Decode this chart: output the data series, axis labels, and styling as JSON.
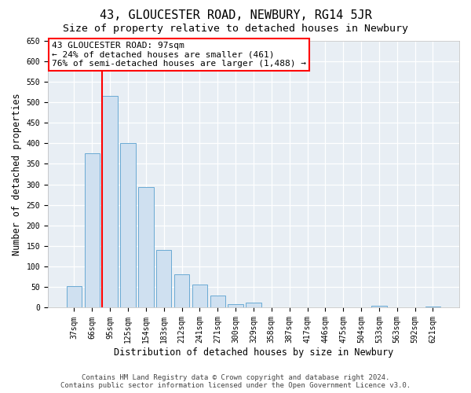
{
  "title": "43, GLOUCESTER ROAD, NEWBURY, RG14 5JR",
  "subtitle": "Size of property relative to detached houses in Newbury",
  "xlabel": "Distribution of detached houses by size in Newbury",
  "ylabel": "Number of detached properties",
  "footer_line1": "Contains HM Land Registry data © Crown copyright and database right 2024.",
  "footer_line2": "Contains public sector information licensed under the Open Government Licence v3.0.",
  "categories": [
    "37sqm",
    "66sqm",
    "95sqm",
    "125sqm",
    "154sqm",
    "183sqm",
    "212sqm",
    "241sqm",
    "271sqm",
    "300sqm",
    "329sqm",
    "358sqm",
    "387sqm",
    "417sqm",
    "446sqm",
    "475sqm",
    "504sqm",
    "533sqm",
    "563sqm",
    "592sqm",
    "621sqm"
  ],
  "values": [
    52,
    375,
    515,
    400,
    293,
    140,
    82,
    57,
    30,
    8,
    12,
    0,
    0,
    0,
    0,
    0,
    0,
    5,
    0,
    0,
    3
  ],
  "bar_color": "#cfe0f0",
  "bar_edge_color": "#6aaad4",
  "vertical_line_color": "red",
  "annotation_text": "43 GLOUCESTER ROAD: 97sqm\n← 24% of detached houses are smaller (461)\n76% of semi-detached houses are larger (1,488) →",
  "annotation_box_facecolor": "white",
  "annotation_box_edgecolor": "red",
  "ylim": [
    0,
    650
  ],
  "yticks": [
    0,
    50,
    100,
    150,
    200,
    250,
    300,
    350,
    400,
    450,
    500,
    550,
    600,
    650
  ],
  "background_color": "#ffffff",
  "plot_bg_color": "#e8eef4",
  "grid_color": "#ffffff",
  "title_fontsize": 11,
  "subtitle_fontsize": 9.5,
  "axis_label_fontsize": 8.5,
  "tick_fontsize": 7,
  "footer_fontsize": 6.5,
  "annotation_fontsize": 8
}
